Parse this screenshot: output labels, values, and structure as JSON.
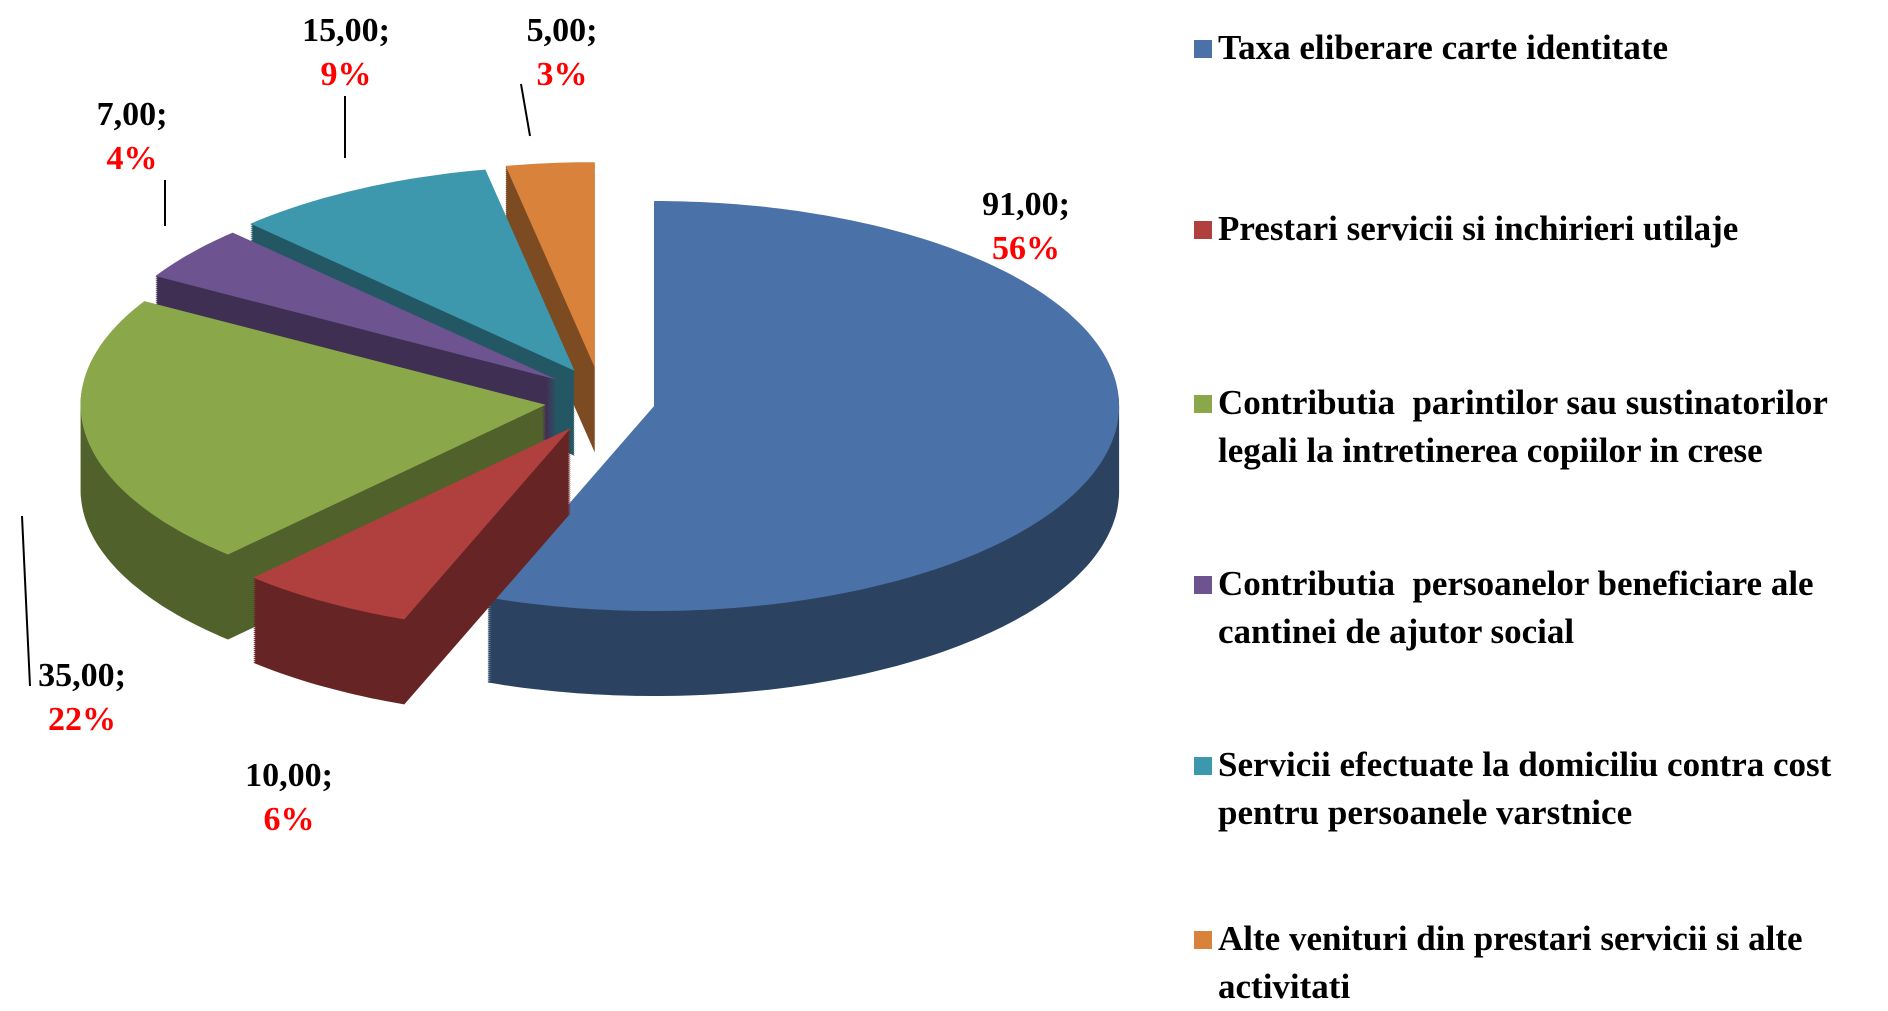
{
  "chart_data": {
    "type": "pie3d",
    "categories": [
      "Taxa eliberare carte identitate",
      "Prestari servicii si inchirieri utilaje",
      "Contributia  parintilor sau sustinatorilor legali la intretinerea copiilor in crese",
      "Contributia  persoanelor beneficiare ale cantinei de ajutor social",
      "Servicii efectuate la domiciliu contra cost pentru persoanele varstnice",
      "Alte venituri din prestari servicii si alte activitati"
    ],
    "values": [
      91,
      10,
      35,
      7,
      15,
      5
    ],
    "value_labels": [
      "91,00;",
      "10,00;",
      "35,00;",
      "7,00;",
      "15,00;",
      "5,00;"
    ],
    "percent_labels": [
      "56%",
      "6%",
      "22%",
      "4%",
      "9%",
      "3%"
    ],
    "colors": [
      "#4a72a8",
      "#b0403e",
      "#8aa84a",
      "#6d5490",
      "#3d97ad",
      "#d8823c"
    ]
  }
}
